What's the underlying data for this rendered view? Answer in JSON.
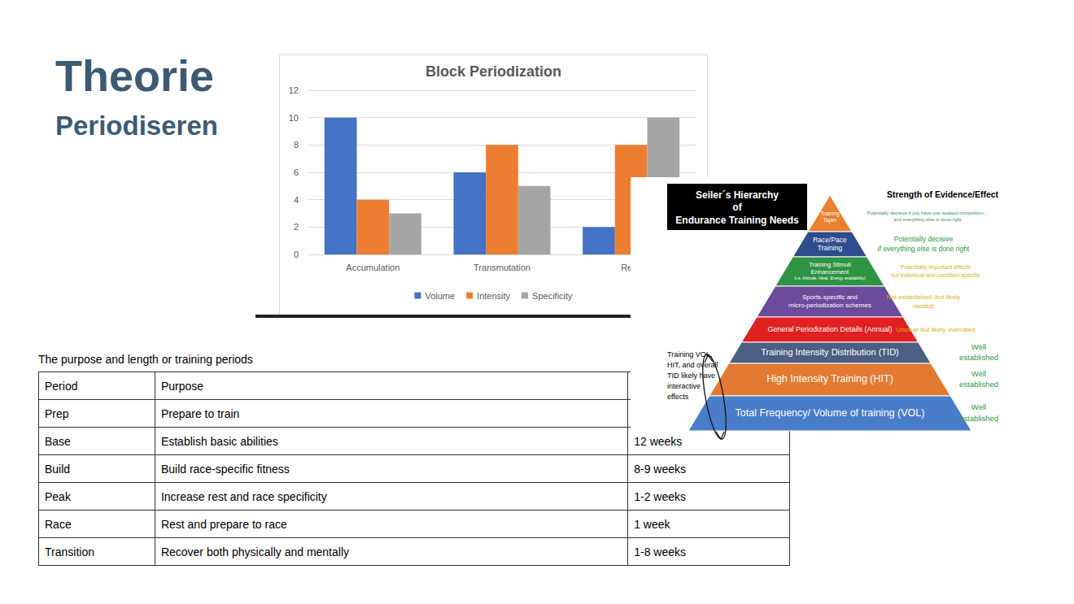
{
  "slide": {
    "title": "Theorie",
    "subtitle": "Periodiseren"
  },
  "chart_data": {
    "type": "bar",
    "title": "Block Periodization",
    "categories": [
      "Accumulation",
      "Transmutation",
      "Reali"
    ],
    "series": [
      {
        "name": "Volume",
        "color": "#4472c4",
        "values": [
          10,
          6,
          2
        ]
      },
      {
        "name": "Intensity",
        "color": "#ed7d31",
        "values": [
          4,
          8,
          8
        ]
      },
      {
        "name": "Specificity",
        "color": "#a5a5a5",
        "values": [
          3,
          5,
          10
        ]
      }
    ],
    "ylim": [
      0,
      12
    ],
    "yticks": [
      0,
      2,
      4,
      6,
      8,
      10,
      12
    ],
    "grid": true,
    "legend": "bottom"
  },
  "pyramid": {
    "title": [
      "Seiler´s Hierarchy",
      "of",
      "Endurance Training Needs"
    ],
    "evidence_header": "Strength of Evidence/Effect",
    "levels": [
      {
        "label": [
          "Training",
          "Taper"
        ],
        "evidence": [
          "Potentially decisive if you have one isolated competition…",
          "and everything else is done right"
        ]
      },
      {
        "label": [
          "Race/Pace",
          "Training"
        ],
        "evidence": [
          "Potentially decisive",
          "if everything else is done right"
        ]
      },
      {
        "label": [
          "Training Stimuli",
          "Enhancement",
          "(i.e. Altitude, Heat, Energy availability)"
        ],
        "evidence": [
          "Potentially important effects",
          "but individual and condition specific"
        ]
      },
      {
        "label": [
          "Sports-specific and",
          "micro-periodization schemes"
        ],
        "evidence": [
          "Not established, but likely",
          "modest"
        ]
      },
      {
        "label": [
          "General Periodization Details (Annual)"
        ],
        "evidence": [
          "Unclear but likely overrated"
        ]
      },
      {
        "label": [
          "Training Intensity Distribution (TID)"
        ],
        "evidence": [
          "Well",
          "established"
        ]
      },
      {
        "label": [
          "High Intensity Training (HIT)"
        ],
        "evidence": [
          "Well",
          "established"
        ]
      },
      {
        "label": [
          "Total Frequency/ Volume of training (VOL)"
        ],
        "evidence": [
          "Well",
          "established"
        ]
      }
    ],
    "note": [
      "Training VOL,",
      "HIT, and overall",
      "TID likely have",
      "interactive",
      "effects"
    ]
  },
  "table": {
    "caption": "The purpose and length or training periods",
    "header": [
      "Period",
      "Purpose"
    ],
    "rows": [
      [
        "Prep",
        "Prepare to train"
      ],
      [
        "Base",
        "Establish basic abilities",
        "12 weeks"
      ],
      [
        "Build",
        "Build race-specific fitness",
        "8-9 weeks"
      ],
      [
        "Peak",
        "Increase rest and race specificity",
        "1-2 weeks"
      ],
      [
        "Race",
        "Rest and prepare to race",
        "1 week"
      ],
      [
        "Transition",
        "Recover both physically and mentally",
        "1-8 weeks"
      ]
    ]
  }
}
